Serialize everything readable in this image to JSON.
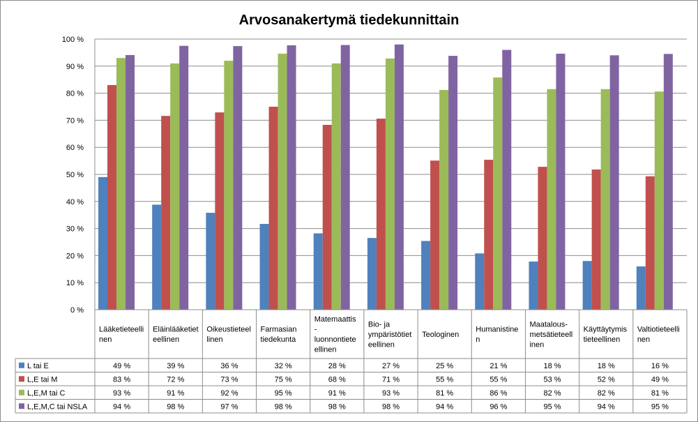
{
  "chart_data": {
    "type": "bar",
    "title": "Arvosanakertymä tiedekunnittain",
    "xlabel": "",
    "ylabel": "",
    "ylim": [
      0,
      100
    ],
    "y_ticks": [
      "0 %",
      "10 %",
      "20 %",
      "30 %",
      "40 %",
      "50 %",
      "60 %",
      "70 %",
      "80 %",
      "90 %",
      "100 %"
    ],
    "grid": true,
    "legend": "data-table-left",
    "categories": [
      [
        "Lääketieteelli",
        "nen"
      ],
      [
        "Eläinlääketiet",
        "eellinen"
      ],
      [
        "Oikeustieteel",
        "linen"
      ],
      [
        "Farmasian",
        "tiedekunta"
      ],
      [
        "Matemaattis",
        "-",
        "luonnontiete",
        "ellinen"
      ],
      [
        "Bio- ja",
        "ympäristötiet",
        "eellinen"
      ],
      [
        "Teologinen"
      ],
      [
        "Humanistine",
        "n"
      ],
      [
        "Maatalous-",
        "metsätieteell",
        "inen"
      ],
      [
        "Käyttäytymis",
        "tieteellinen"
      ],
      [
        "Valtiotieteelli",
        "nen"
      ]
    ],
    "series": [
      {
        "name": "L tai E",
        "color": "#4F81BD",
        "values": [
          49,
          38.8,
          35.8,
          31.7,
          28.2,
          26.5,
          25.4,
          20.8,
          17.8,
          18,
          16
        ],
        "labels": [
          "49 %",
          "39 %",
          "36 %",
          "32 %",
          "28 %",
          "27 %",
          "25 %",
          "21 %",
          "18 %",
          "18 %",
          "16 %"
        ]
      },
      {
        "name": "L,E tai M",
        "color": "#C0504D",
        "values": [
          83,
          71.6,
          72.9,
          75,
          68.3,
          70.6,
          55.1,
          55.4,
          52.8,
          51.8,
          49.3
        ],
        "labels": [
          "83 %",
          "72 %",
          "73 %",
          "75 %",
          "68 %",
          "71 %",
          "55 %",
          "55 %",
          "53 %",
          "52 %",
          "49 %"
        ]
      },
      {
        "name": "L,E,M tai C",
        "color": "#9BBB59",
        "values": [
          93,
          91,
          92,
          94.6,
          91,
          92.8,
          81.2,
          85.8,
          81.5,
          81.5,
          80.6
        ],
        "labels": [
          "93 %",
          "91 %",
          "92 %",
          "95 %",
          "91 %",
          "93 %",
          "81 %",
          "86 %",
          "82 %",
          "82 %",
          "81 %"
        ]
      },
      {
        "name": "L,E,M,C tai NSLA",
        "color": "#8064A2",
        "values": [
          94.1,
          97.5,
          97.4,
          97.7,
          97.8,
          98,
          93.8,
          96,
          94.6,
          94,
          94.5
        ],
        "labels": [
          "94 %",
          "98 %",
          "97 %",
          "98 %",
          "98 %",
          "98 %",
          "94 %",
          "96 %",
          "95 %",
          "94 %",
          "95 %"
        ]
      }
    ]
  }
}
